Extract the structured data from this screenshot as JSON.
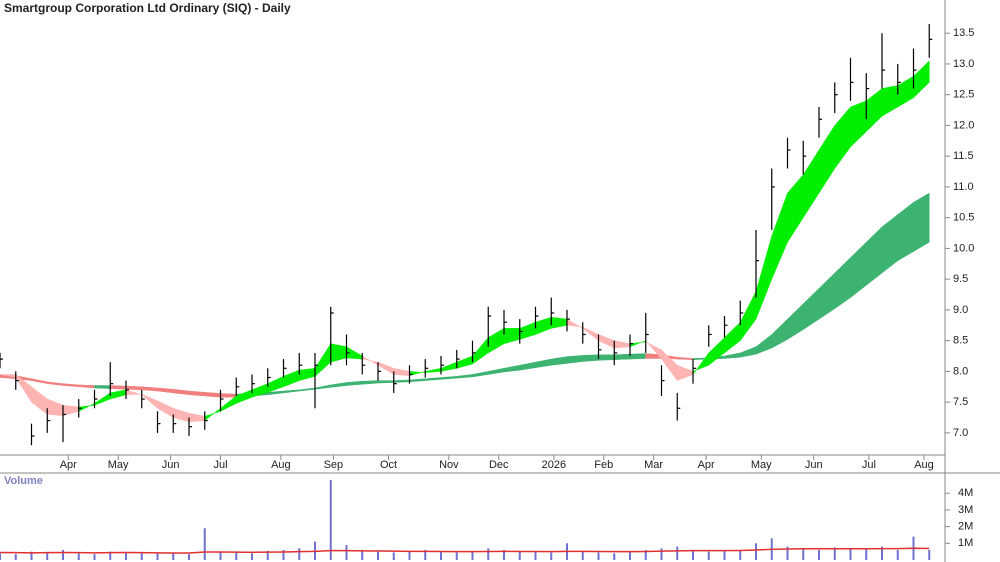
{
  "chart_data": [
    {
      "type": "hlc",
      "title": "Smartgroup Corporation Ltd Ordinary (SIQ) - Daily",
      "x": [
        0,
        6,
        12,
        18,
        24,
        30,
        36,
        42,
        48,
        54,
        60,
        66,
        72,
        78,
        84,
        90,
        96,
        102,
        108,
        114,
        120,
        126,
        132,
        138,
        144,
        150,
        156,
        162,
        168,
        174,
        180,
        186,
        192,
        198,
        204,
        210,
        216,
        222,
        228,
        234,
        240,
        246,
        252,
        258,
        264,
        270,
        276,
        282,
        288,
        294,
        300,
        306,
        312,
        318,
        324,
        330,
        336,
        342,
        348,
        354
      ],
      "close": [
        8.2,
        7.85,
        6.95,
        7.2,
        7.3,
        7.4,
        7.55,
        7.8,
        7.7,
        7.55,
        7.15,
        7.15,
        7.1,
        7.2,
        7.55,
        7.75,
        7.8,
        7.9,
        8.05,
        8.1,
        8.1,
        8.95,
        8.3,
        8.1,
        8.0,
        7.8,
        7.95,
        8.05,
        8.1,
        8.2,
        8.3,
        8.9,
        8.8,
        8.65,
        8.9,
        8.95,
        8.85,
        8.6,
        8.35,
        8.3,
        8.45,
        8.6,
        7.85,
        7.4,
        8.05,
        8.6,
        8.75,
        8.95,
        9.8,
        11.0,
        11.6,
        11.5,
        12.1,
        12.5,
        12.7,
        12.6,
        12.9,
        12.7,
        12.9,
        13.4
      ],
      "high": [
        8.3,
        8.0,
        7.15,
        7.4,
        7.45,
        7.55,
        7.7,
        8.15,
        7.85,
        7.7,
        7.35,
        7.3,
        7.25,
        7.35,
        7.7,
        7.9,
        7.95,
        8.05,
        8.2,
        8.3,
        8.3,
        9.05,
        8.6,
        8.3,
        8.15,
        8.0,
        8.1,
        8.2,
        8.25,
        8.35,
        8.5,
        9.05,
        9.0,
        8.85,
        9.05,
        9.2,
        9.0,
        8.8,
        8.6,
        8.5,
        8.6,
        8.95,
        8.1,
        7.65,
        8.2,
        8.75,
        8.9,
        9.15,
        10.3,
        11.3,
        11.8,
        11.75,
        12.3,
        12.7,
        13.1,
        12.85,
        13.5,
        13.0,
        13.25,
        13.65
      ],
      "low": [
        8.05,
        7.7,
        6.8,
        7.0,
        6.85,
        7.25,
        7.4,
        7.6,
        7.55,
        7.4,
        7.0,
        7.0,
        6.95,
        7.05,
        7.35,
        7.6,
        7.65,
        7.75,
        7.9,
        7.95,
        7.4,
        8.1,
        8.1,
        7.95,
        7.85,
        7.65,
        7.8,
        7.9,
        7.95,
        8.05,
        8.15,
        8.4,
        8.6,
        8.45,
        8.7,
        8.75,
        8.65,
        8.45,
        8.2,
        8.1,
        8.25,
        8.3,
        7.6,
        7.2,
        7.8,
        8.4,
        8.55,
        8.75,
        9.2,
        10.3,
        11.3,
        11.2,
        11.8,
        12.2,
        12.4,
        12.1,
        12.6,
        12.5,
        12.6,
        13.1
      ],
      "fast_a": [
        7.95,
        7.9,
        7.5,
        7.3,
        7.28,
        7.35,
        7.48,
        7.65,
        7.7,
        7.62,
        7.4,
        7.25,
        7.18,
        7.2,
        7.4,
        7.6,
        7.7,
        7.8,
        7.92,
        8.02,
        8.05,
        8.45,
        8.4,
        8.25,
        8.1,
        7.95,
        7.93,
        8.0,
        8.05,
        8.15,
        8.25,
        8.55,
        8.7,
        8.7,
        8.8,
        8.88,
        8.85,
        8.7,
        8.5,
        8.38,
        8.4,
        8.5,
        8.2,
        7.85,
        7.95,
        8.3,
        8.55,
        8.8,
        9.3,
        10.2,
        10.9,
        11.2,
        11.6,
        12.0,
        12.3,
        12.4,
        12.6,
        12.65,
        12.8,
        13.05
      ],
      "fast_b": [
        7.95,
        7.95,
        7.75,
        7.55,
        7.45,
        7.42,
        7.45,
        7.55,
        7.62,
        7.63,
        7.52,
        7.4,
        7.32,
        7.27,
        7.35,
        7.48,
        7.58,
        7.66,
        7.75,
        7.85,
        7.92,
        8.15,
        8.22,
        8.2,
        8.15,
        8.05,
        8.0,
        7.98,
        8.0,
        8.05,
        8.12,
        8.3,
        8.45,
        8.52,
        8.6,
        8.7,
        8.75,
        8.72,
        8.6,
        8.5,
        8.45,
        8.48,
        8.35,
        8.1,
        8.0,
        8.1,
        8.3,
        8.5,
        8.85,
        9.5,
        10.1,
        10.5,
        10.9,
        11.3,
        11.65,
        11.9,
        12.15,
        12.3,
        12.45,
        12.7
      ],
      "slow_a": [
        7.95,
        7.93,
        7.88,
        7.83,
        7.8,
        7.78,
        7.77,
        7.77,
        7.76,
        7.75,
        7.73,
        7.71,
        7.68,
        7.66,
        7.64,
        7.63,
        7.64,
        7.66,
        7.68,
        7.7,
        7.73,
        7.78,
        7.82,
        7.84,
        7.85,
        7.85,
        7.86,
        7.88,
        7.9,
        7.92,
        7.95,
        8.0,
        8.05,
        8.1,
        8.15,
        8.2,
        8.24,
        8.26,
        8.27,
        8.27,
        8.28,
        8.29,
        8.27,
        8.23,
        8.21,
        8.22,
        8.25,
        8.3,
        8.4,
        8.6,
        8.85,
        9.1,
        9.35,
        9.6,
        9.85,
        10.1,
        10.35,
        10.55,
        10.75,
        10.9
      ],
      "slow_b": [
        7.9,
        7.88,
        7.85,
        7.8,
        7.77,
        7.75,
        7.73,
        7.72,
        7.71,
        7.7,
        7.68,
        7.65,
        7.62,
        7.6,
        7.58,
        7.58,
        7.6,
        7.62,
        7.65,
        7.68,
        7.71,
        7.74,
        7.77,
        7.79,
        7.81,
        7.82,
        7.83,
        7.85,
        7.87,
        7.89,
        7.91,
        7.95,
        7.99,
        8.02,
        8.06,
        8.1,
        8.13,
        8.16,
        8.18,
        8.19,
        8.2,
        8.21,
        8.21,
        8.2,
        8.19,
        8.2,
        8.21,
        8.23,
        8.28,
        8.38,
        8.52,
        8.68,
        8.85,
        9.02,
        9.2,
        9.4,
        9.6,
        9.8,
        9.95,
        10.1
      ],
      "bar_color": "#000000",
      "fast_up_color": "#00ee00",
      "fast_down_color": "#ffb4b4",
      "slow_up_color": "#3cb371",
      "slow_down_color": "#f08080",
      "xlim": [
        0,
        360
      ],
      "xticks": [
        {
          "value": 26,
          "label": "Apr"
        },
        {
          "value": 45,
          "label": "May"
        },
        {
          "value": 65,
          "label": "Jun"
        },
        {
          "value": 84,
          "label": "Jul"
        },
        {
          "value": 107,
          "label": "Aug"
        },
        {
          "value": 127,
          "label": "Sep"
        },
        {
          "value": 148,
          "label": "Oct"
        },
        {
          "value": 171,
          "label": "Nov"
        },
        {
          "value": 190,
          "label": "Dec"
        },
        {
          "value": 211,
          "label": "2026"
        },
        {
          "value": 230,
          "label": "Feb"
        },
        {
          "value": 249,
          "label": "Mar"
        },
        {
          "value": 269,
          "label": "Apr"
        },
        {
          "value": 290,
          "label": "May"
        },
        {
          "value": 310,
          "label": "Jun"
        },
        {
          "value": 331,
          "label": "Jul"
        },
        {
          "value": 352,
          "label": "Aug"
        }
      ],
      "ylim": [
        6.64,
        14.04
      ],
      "yticks": [
        {
          "value": 7,
          "label": "7.0"
        },
        7.5,
        {
          "value": 8,
          "label": "8.0"
        },
        8.5,
        {
          "value": 9,
          "label": "9.0"
        },
        9.5,
        {
          "value": 10,
          "label": "10.0"
        },
        10.5,
        {
          "value": 11,
          "label": "11.0"
        },
        11.5,
        {
          "value": 12,
          "label": "12.0"
        },
        12.5,
        {
          "value": 13,
          "label": "13.0"
        },
        13.5
      ]
    },
    {
      "type": "bar",
      "title": "Volume",
      "x": [
        0,
        6,
        12,
        18,
        24,
        30,
        36,
        42,
        48,
        54,
        60,
        66,
        72,
        78,
        84,
        90,
        96,
        102,
        108,
        114,
        120,
        126,
        132,
        138,
        144,
        150,
        156,
        162,
        168,
        174,
        180,
        186,
        192,
        198,
        204,
        210,
        216,
        222,
        228,
        234,
        240,
        246,
        252,
        258,
        264,
        270,
        276,
        282,
        288,
        294,
        300,
        306,
        312,
        318,
        324,
        330,
        336,
        342,
        348,
        354
      ],
      "values": [
        400000,
        350000,
        500000,
        450000,
        600000,
        400000,
        350000,
        500000,
        450000,
        400000,
        380000,
        420000,
        350000,
        1900000,
        500000,
        450000,
        400000,
        550000,
        600000,
        700000,
        1100000,
        4800000,
        900000,
        600000,
        500000,
        450000,
        550000,
        600000,
        500000,
        450000,
        500000,
        700000,
        600000,
        500000,
        550000,
        450000,
        1000000,
        500000,
        450000,
        400000,
        500000,
        600000,
        700000,
        800000,
        600000,
        500000,
        550000,
        600000,
        1000000,
        1300000,
        800000,
        700000,
        600000,
        750000,
        650000,
        700000,
        800000,
        600000,
        1400000,
        600000
      ],
      "average": [
        450000,
        440000,
        430000,
        440000,
        450000,
        440000,
        430000,
        440000,
        450000,
        440000,
        430000,
        420000,
        420000,
        480000,
        480000,
        470000,
        460000,
        470000,
        480000,
        500000,
        520000,
        560000,
        560000,
        550000,
        540000,
        530000,
        520000,
        520000,
        510000,
        500000,
        500000,
        510000,
        520000,
        510000,
        510000,
        500000,
        520000,
        520000,
        510000,
        500000,
        500000,
        510000,
        530000,
        550000,
        560000,
        560000,
        560000,
        570000,
        600000,
        640000,
        660000,
        670000,
        670000,
        670000,
        670000,
        670000,
        680000,
        680000,
        700000,
        690000
      ],
      "color": "#7070d0",
      "average_color": "#e03030",
      "xlim": [
        0,
        360
      ],
      "ylim": [
        0,
        5000000
      ],
      "yticks": [
        {
          "value": 1000000,
          "label": "1M"
        },
        {
          "value": 2000000,
          "label": "2M"
        },
        {
          "value": 3000000,
          "label": "3M"
        },
        {
          "value": 4000000,
          "label": "4M"
        }
      ]
    }
  ]
}
